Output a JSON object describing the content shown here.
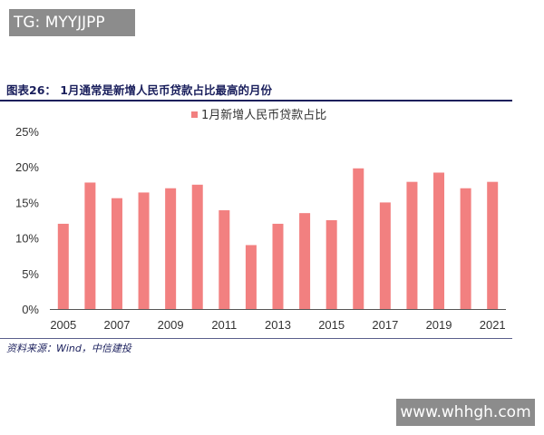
{
  "watermarks": {
    "top_left": "TG: MYYJJPP",
    "bottom_right": "www.whhgh.com"
  },
  "figure": {
    "title": "图表26：  1月通常是新增人民币贷款占比最高的月份",
    "source": "资料来源：Wind，中信建投"
  },
  "colors": {
    "bar": "#f28080",
    "axis": "#555555",
    "title": "#1a1f5c"
  },
  "chart_data": {
    "type": "bar",
    "title": "",
    "xlabel": "",
    "ylabel": "",
    "categories": [
      "2005",
      "2006",
      "2007",
      "2008",
      "2009",
      "2010",
      "2011",
      "2012",
      "2013",
      "2014",
      "2015",
      "2016",
      "2017",
      "2018",
      "2019",
      "2020",
      "2021"
    ],
    "x_tick_labels": [
      "2005",
      "2007",
      "2009",
      "2011",
      "2013",
      "2015",
      "2017",
      "2019",
      "2021"
    ],
    "series": [
      {
        "name": "1月新增人民币贷款占比",
        "values": [
          12.0,
          17.8,
          15.6,
          16.4,
          17.0,
          17.5,
          13.9,
          9.0,
          12.0,
          13.5,
          12.5,
          19.8,
          15.0,
          17.9,
          19.2,
          17.0,
          17.9
        ]
      }
    ],
    "ylim": [
      0,
      25
    ],
    "y_ticks": [
      0,
      5,
      10,
      15,
      20,
      25
    ],
    "y_tick_format": "percent",
    "grid": false,
    "legend_position": "top-center"
  }
}
